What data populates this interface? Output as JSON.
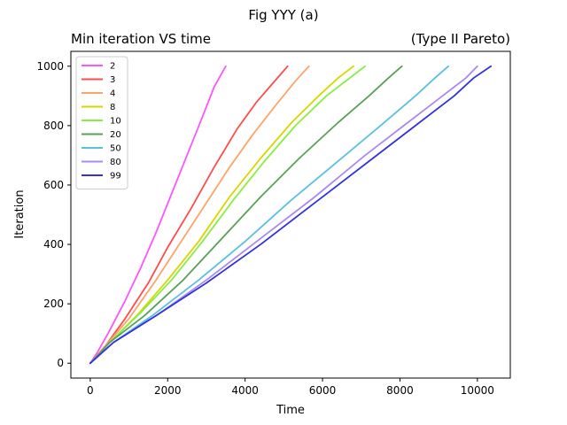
{
  "chart_data": {
    "type": "line",
    "suptitle": "Fig YYY (a)",
    "title_left": "Min iteration VS time",
    "title_right": "(Type II Pareto)",
    "xlabel": "Time",
    "ylabel": "Iteration",
    "xlim": [
      -500,
      10850
    ],
    "ylim": [
      -50,
      1050
    ],
    "xticks": [
      0,
      2000,
      4000,
      6000,
      8000,
      10000
    ],
    "yticks": [
      0,
      200,
      400,
      600,
      800,
      1000
    ],
    "grid": false,
    "legend_position": "top-left",
    "series": [
      {
        "name": "2",
        "color": "#ff55ff",
        "points": [
          [
            0,
            0
          ],
          [
            200,
            40
          ],
          [
            500,
            110
          ],
          [
            900,
            210
          ],
          [
            1300,
            320
          ],
          [
            1700,
            440
          ],
          [
            2100,
            570
          ],
          [
            2500,
            700
          ],
          [
            2900,
            830
          ],
          [
            3200,
            930
          ],
          [
            3500,
            1000
          ]
        ]
      },
      {
        "name": "3",
        "color": "#ff4c4c",
        "points": [
          [
            0,
            0
          ],
          [
            400,
            60
          ],
          [
            900,
            150
          ],
          [
            1500,
            270
          ],
          [
            2000,
            390
          ],
          [
            2600,
            520
          ],
          [
            3200,
            660
          ],
          [
            3800,
            790
          ],
          [
            4300,
            880
          ],
          [
            4700,
            940
          ],
          [
            5100,
            1000
          ]
        ]
      },
      {
        "name": "4",
        "color": "#ffa36a",
        "points": [
          [
            0,
            0
          ],
          [
            400,
            60
          ],
          [
            1000,
            150
          ],
          [
            1700,
            280
          ],
          [
            2300,
            400
          ],
          [
            3000,
            540
          ],
          [
            3600,
            660
          ],
          [
            4200,
            770
          ],
          [
            4800,
            870
          ],
          [
            5300,
            950
          ],
          [
            5650,
            1000
          ]
        ]
      },
      {
        "name": "8",
        "color": "#d6d600",
        "points": [
          [
            0,
            0
          ],
          [
            500,
            70
          ],
          [
            1200,
            160
          ],
          [
            2000,
            280
          ],
          [
            2800,
            410
          ],
          [
            3600,
            560
          ],
          [
            4400,
            690
          ],
          [
            5200,
            810
          ],
          [
            5900,
            900
          ],
          [
            6400,
            960
          ],
          [
            6800,
            1000
          ]
        ]
      },
      {
        "name": "10",
        "color": "#88ee44",
        "points": [
          [
            0,
            0
          ],
          [
            500,
            70
          ],
          [
            1300,
            170
          ],
          [
            2100,
            280
          ],
          [
            2900,
            410
          ],
          [
            3700,
            550
          ],
          [
            4500,
            680
          ],
          [
            5300,
            800
          ],
          [
            6100,
            900
          ],
          [
            6600,
            950
          ],
          [
            7100,
            1000
          ]
        ]
      },
      {
        "name": "20",
        "color": "#5aa05a",
        "points": [
          [
            0,
            0
          ],
          [
            500,
            70
          ],
          [
            1400,
            160
          ],
          [
            2400,
            280
          ],
          [
            3400,
            420
          ],
          [
            4400,
            560
          ],
          [
            5400,
            690
          ],
          [
            6400,
            810
          ],
          [
            7200,
            900
          ],
          [
            7700,
            960
          ],
          [
            8050,
            1000
          ]
        ]
      },
      {
        "name": "50",
        "color": "#5bc0de",
        "points": [
          [
            0,
            0
          ],
          [
            600,
            70
          ],
          [
            1600,
            160
          ],
          [
            2800,
            280
          ],
          [
            4000,
            410
          ],
          [
            5200,
            550
          ],
          [
            6400,
            680
          ],
          [
            7500,
            800
          ],
          [
            8400,
            900
          ],
          [
            8900,
            960
          ],
          [
            9250,
            1000
          ]
        ]
      },
      {
        "name": "80",
        "color": "#a98af0",
        "points": [
          [
            0,
            0
          ],
          [
            600,
            70
          ],
          [
            1700,
            160
          ],
          [
            3000,
            280
          ],
          [
            4400,
            420
          ],
          [
            5800,
            560
          ],
          [
            7100,
            700
          ],
          [
            8300,
            820
          ],
          [
            9200,
            910
          ],
          [
            9700,
            960
          ],
          [
            10000,
            1000
          ]
        ]
      },
      {
        "name": "99",
        "color": "#3333dd",
        "points": [
          [
            0,
            0
          ],
          [
            600,
            70
          ],
          [
            1700,
            160
          ],
          [
            3000,
            270
          ],
          [
            4400,
            400
          ],
          [
            5800,
            540
          ],
          [
            7200,
            680
          ],
          [
            8500,
            810
          ],
          [
            9400,
            900
          ],
          [
            9900,
            960
          ],
          [
            10350,
            1000
          ]
        ]
      }
    ]
  }
}
